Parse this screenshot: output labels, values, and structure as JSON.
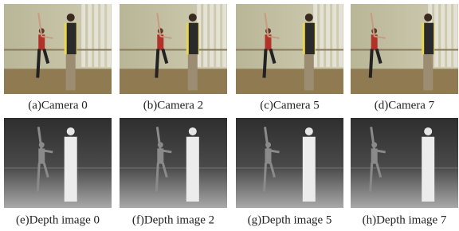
{
  "images": [
    {
      "caption": "(a)Camera 0"
    },
    {
      "caption": "(b)Camera 2"
    },
    {
      "caption": "(c)Camera 5"
    },
    {
      "caption": "(d)Camera 7"
    },
    {
      "caption": "(e)Depth image 0"
    },
    {
      "caption": "(f)Depth image 2"
    },
    {
      "caption": "(g)Depth image 5"
    },
    {
      "caption": "(h)Depth image 7"
    }
  ]
}
